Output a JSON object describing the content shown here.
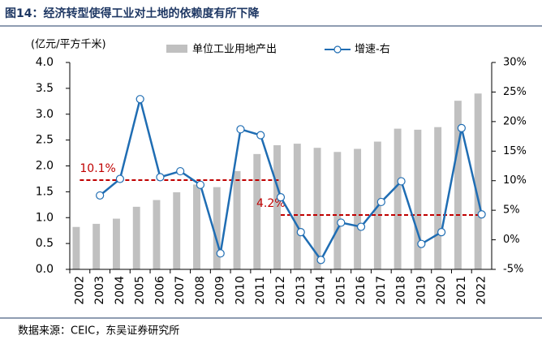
{
  "chart_data": {
    "type": "bar_line",
    "title": "图14：经济转型使得工业对土地的依赖度有所下降",
    "y_label": "(亿元/平方千米)",
    "source": "数据来源：CEIC，东吴证券研究所",
    "categories": [
      "2002",
      "2003",
      "2004",
      "2005",
      "2006",
      "2007",
      "2008",
      "2009",
      "2010",
      "2011",
      "2012",
      "2013",
      "2014",
      "2015",
      "2016",
      "2017",
      "2018",
      "2019",
      "2020",
      "2021",
      "2022"
    ],
    "series": [
      {
        "name": "单位工业用地产出",
        "color": "#c0c0c0",
        "type": "bar",
        "values": [
          0.82,
          0.88,
          0.98,
          1.21,
          1.34,
          1.49,
          1.64,
          1.59,
          1.9,
          2.23,
          2.4,
          2.43,
          2.35,
          2.27,
          2.33,
          2.47,
          2.72,
          2.7,
          2.75,
          3.26,
          3.4
        ]
      },
      {
        "name": "增速-右",
        "color": "#1f6db3",
        "type": "line",
        "axis": "y2",
        "values": [
          null,
          7.5,
          10.3,
          23.8,
          10.6,
          11.6,
          9.3,
          -2.3,
          18.7,
          17.7,
          7.2,
          1.3,
          -3.4,
          2.9,
          2.2,
          6.4,
          9.9,
          -0.7,
          1.3,
          18.9,
          4.3
        ]
      }
    ],
    "ylim": [
      0,
      4
    ],
    "yticks": [
      {
        "value": 0,
        "label": "0.0"
      },
      {
        "value": 0.5,
        "label": "0.5"
      },
      {
        "value": 1,
        "label": "1.0"
      },
      {
        "value": 1.5,
        "label": "1.5"
      },
      {
        "value": 2,
        "label": "2.0"
      },
      {
        "value": 2.5,
        "label": "2.5"
      },
      {
        "value": 3,
        "label": "3.0"
      },
      {
        "value": 3.5,
        "label": "3.5"
      },
      {
        "value": 4,
        "label": "4.0"
      }
    ],
    "y2lim": [
      -5,
      30
    ],
    "y2ticks": [
      {
        "value": -5,
        "label": "-5%"
      },
      {
        "value": 0,
        "label": "0%"
      },
      {
        "value": 5,
        "label": "5%"
      },
      {
        "value": 10,
        "label": "10%"
      },
      {
        "value": 15,
        "label": "15%"
      },
      {
        "value": 20,
        "label": "20%"
      },
      {
        "value": 25,
        "label": "25%"
      },
      {
        "value": 30,
        "label": "30%"
      }
    ],
    "reference_lines": [
      {
        "value": 10.1,
        "label": "10.1%",
        "axis": "y2",
        "color": "#c00000",
        "x_range": [
          "2002",
          "2012"
        ]
      },
      {
        "value": 4.2,
        "label": "4.2%",
        "axis": "y2",
        "color": "#c00000",
        "x_range": [
          "2012",
          "2022"
        ]
      }
    ]
  }
}
